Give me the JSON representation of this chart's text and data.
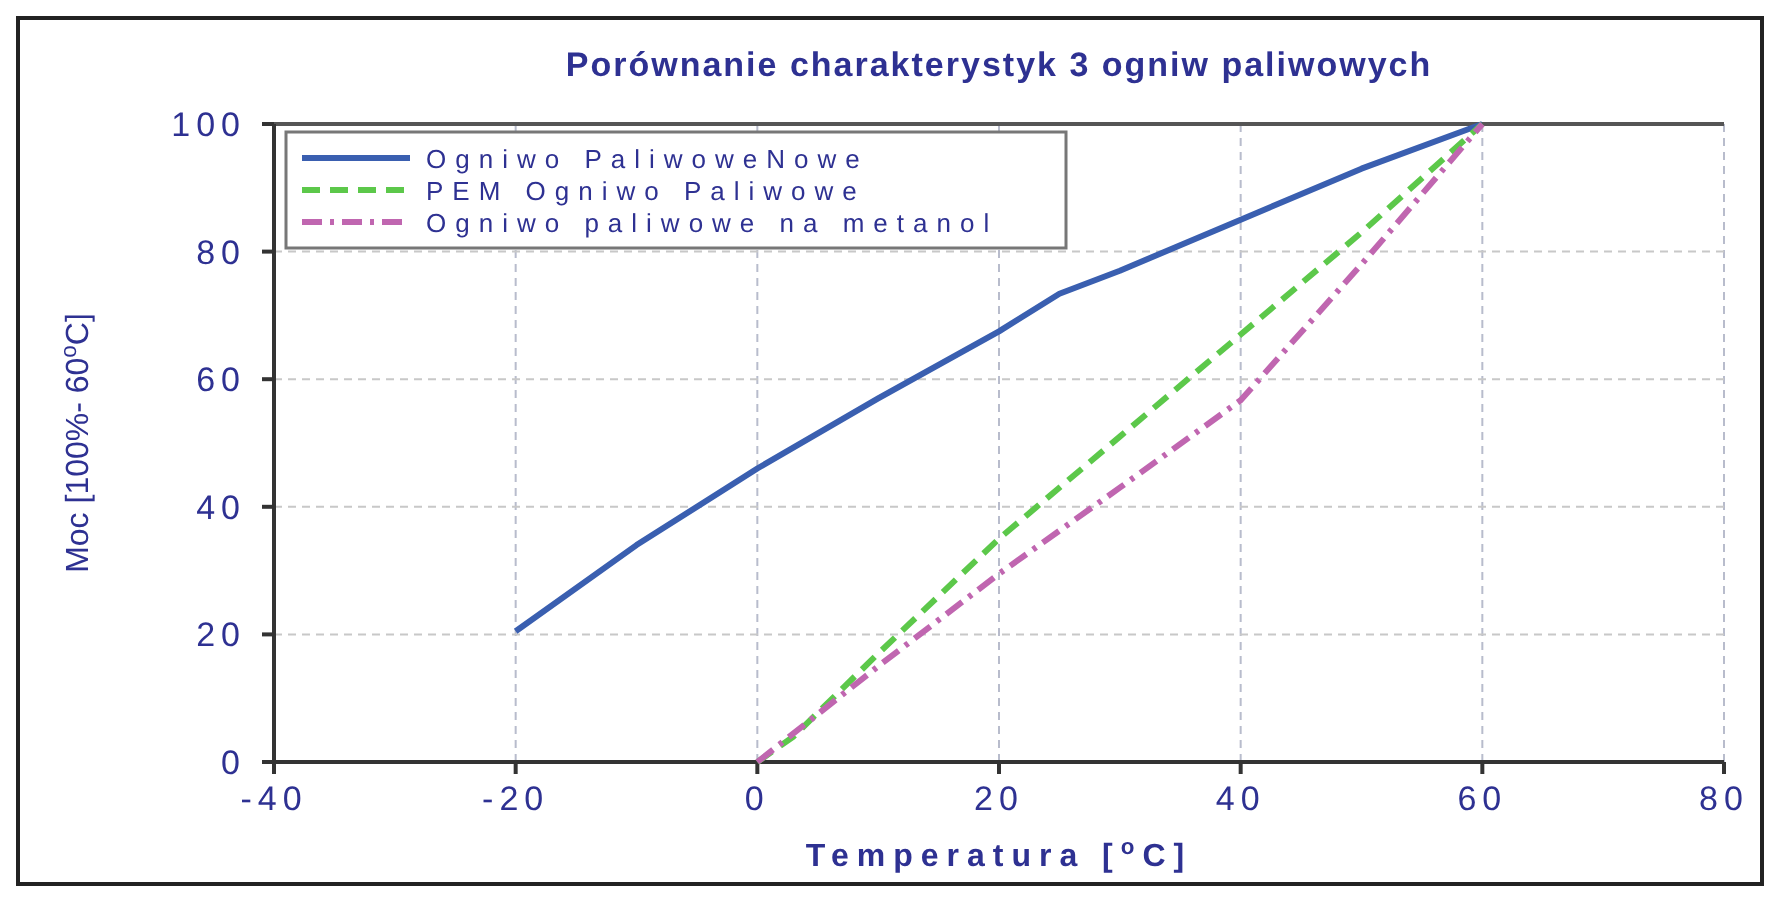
{
  "chart_data": {
    "type": "line",
    "title": "Porównanie charakterystyk 3 ogniw paliwowych",
    "xlabel": "Temperatura [$^{o}$C]",
    "ylabel": "Moc [100%- 60$^{o}$C]",
    "xlim": [
      -40,
      80
    ],
    "xticks": [
      -40,
      -20,
      0,
      20,
      40,
      60,
      80
    ],
    "ylim": [
      0,
      100
    ],
    "yticks": [
      0,
      20,
      40,
      60,
      80,
      100
    ],
    "grid": true,
    "legend": "top left",
    "series": [
      {
        "name": "Ogniwo PaliwoweNowe",
        "color": "#3a5fb0",
        "line_style": "solid",
        "x": [
          -20,
          -10,
          0,
          10,
          20,
          25,
          30,
          40,
          50,
          60
        ],
        "values": [
          20.5,
          34,
          46,
          57,
          67.5,
          73.4,
          77,
          85,
          93,
          100
        ]
      },
      {
        "name": "PEM Ogniwo Paliwowe",
        "color": "#5cc84a",
        "line_style": "dashed",
        "x": [
          0,
          3,
          10,
          20,
          30,
          40,
          50,
          60
        ],
        "values": [
          0,
          4,
          17,
          35,
          51,
          67,
          83,
          100
        ]
      },
      {
        "name": "Ogniwo paliwowe na metanol",
        "color": "#c066b0",
        "line_style": "dashdot",
        "x": [
          0,
          10,
          20,
          30,
          40,
          50,
          60
        ],
        "values": [
          0,
          15,
          29.5,
          43,
          56.7,
          78,
          100
        ]
      }
    ]
  }
}
